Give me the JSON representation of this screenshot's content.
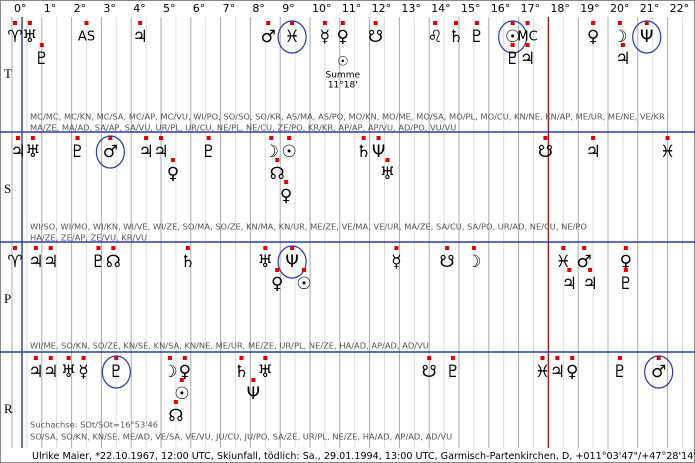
{
  "degree_labels": [
    "0°",
    "1°",
    "2°",
    "3°",
    "4°",
    "5°",
    "6°",
    "7°",
    "8°",
    "9°",
    "10°",
    "11°",
    "12°",
    "13°",
    "14°",
    "15°",
    "16°",
    "17°",
    "18°",
    "19°",
    "20°",
    "21°",
    "22°"
  ],
  "rows": [
    {
      "label": "T",
      "planets": [
        {
          "glyph": "♈",
          "deg": 0.1
        },
        {
          "glyph": "♅",
          "deg": 0.6
        },
        {
          "glyph": "♇",
          "deg": 1.0
        },
        {
          "glyph": "AS",
          "deg": 2.5
        },
        {
          "glyph": "♃",
          "deg": 4.3
        },
        {
          "glyph": "♂",
          "deg": 8.6
        },
        {
          "glyph": "♓",
          "deg": 9.4,
          "circled": true
        },
        {
          "glyph": "☿",
          "deg": 10.5
        },
        {
          "glyph": "♀",
          "deg": 11.1
        },
        {
          "glyph": "☋",
          "deg": 12.2
        },
        {
          "glyph": "♌",
          "deg": 14.2
        },
        {
          "glyph": "♄",
          "deg": 14.9
        },
        {
          "glyph": "♇",
          "deg": 15.6
        },
        {
          "glyph": "☉",
          "deg": 16.8,
          "circled": true
        },
        {
          "glyph": "♇",
          "deg": 16.8
        },
        {
          "glyph": "MC",
          "deg": 17.3
        },
        {
          "glyph": "♃",
          "deg": 17.3
        },
        {
          "glyph": "♀",
          "deg": 19.5
        },
        {
          "glyph": "☽",
          "deg": 20.4
        },
        {
          "glyph": "♃",
          "deg": 20.5
        },
        {
          "glyph": "Ψ",
          "deg": 21.3,
          "circled": true
        }
      ],
      "annotation": {
        "glyph": "☉",
        "label": "Summe",
        "value": "11°18'",
        "deg": 11.1
      },
      "midpoints": [
        "MC/MC, MC/KN, MC/SA, MC/AP, MC/VU, WI/PO, SO/SO, SO/KR, AS/MA, AS/PO, MO/KN, MO/ME, MO/SA, MO/PL, MO/CU, KN/NE, KN/AP, ME/UR, ME/NE, VE/KR",
        "MA/ZE, MA/AD, SA/AP, SA/VU, UR/PL, UR/CU, NE/PL, NE/CU, ZE/PO, KR/KR, AP/AP, AP/VU, AD/PO, VU/VU"
      ]
    },
    {
      "label": "S",
      "planets": [
        {
          "glyph": "♃",
          "deg": 0.2
        },
        {
          "glyph": "♅",
          "deg": 0.7
        },
        {
          "glyph": "♇",
          "deg": 2.2
        },
        {
          "glyph": "♂",
          "deg": 3.3,
          "circled": true
        },
        {
          "glyph": "♃",
          "deg": 4.5
        },
        {
          "glyph": "♃",
          "deg": 5.0
        },
        {
          "glyph": "♀",
          "deg": 5.4
        },
        {
          "glyph": "♇",
          "deg": 6.6
        },
        {
          "glyph": "☽",
          "deg": 8.7
        },
        {
          "glyph": "☉",
          "deg": 9.3
        },
        {
          "glyph": "☊",
          "deg": 8.9
        },
        {
          "glyph": "♀",
          "deg": 9.2
        },
        {
          "glyph": "♄",
          "deg": 11.8
        },
        {
          "glyph": "Ψ",
          "deg": 12.3
        },
        {
          "glyph": "♅",
          "deg": 12.6
        },
        {
          "glyph": "☋",
          "deg": 17.9
        },
        {
          "glyph": "♃",
          "deg": 19.5
        },
        {
          "glyph": "♓",
          "deg": 22.0
        }
      ],
      "midpoints": [
        "WI/SO, WI/MO, WI/KN, WI/VE, WI/ZE, SO/MA, SO/ZE, KN/MA, KN/UR, ME/ZE, VE/MA, VE/UR, MA/ZE, SA/CU, SA/PO, UR/AD, NE/CU, NE/PO",
        "HA/ZE, ZE/AP, ZE/VU, KR/VU"
      ]
    },
    {
      "label": "P",
      "planets": [
        {
          "glyph": "♈",
          "deg": 0.1
        },
        {
          "glyph": "♃",
          "deg": 0.8
        },
        {
          "glyph": "♃",
          "deg": 1.3
        },
        {
          "glyph": "♇",
          "deg": 2.9
        },
        {
          "glyph": "☊",
          "deg": 3.4
        },
        {
          "glyph": "♄",
          "deg": 5.9
        },
        {
          "glyph": "♅",
          "deg": 8.5
        },
        {
          "glyph": "♀",
          "deg": 8.9
        },
        {
          "glyph": "Ψ",
          "deg": 9.4,
          "circled": true
        },
        {
          "glyph": "☉",
          "deg": 9.8
        },
        {
          "glyph": "☿",
          "deg": 12.9
        },
        {
          "glyph": "☋",
          "deg": 14.6
        },
        {
          "glyph": "☽",
          "deg": 15.5
        },
        {
          "glyph": "♓",
          "deg": 18.5
        },
        {
          "glyph": "♃",
          "deg": 18.7
        },
        {
          "glyph": "♂",
          "deg": 19.2
        },
        {
          "glyph": "♃",
          "deg": 19.4
        },
        {
          "glyph": "♀",
          "deg": 20.6
        },
        {
          "glyph": "♇",
          "deg": 20.6
        }
      ],
      "midpoints": [
        "WI/ME, SO/KN, SO/ZE, KN/SE, KN/SA, KN/NE, ME/UR, ME/ZE, UR/PL, NE/ZE, HA/AD, AP/AD, AD/VU"
      ]
    },
    {
      "label": "R",
      "planets": [
        {
          "glyph": "♃",
          "deg": 0.8
        },
        {
          "glyph": "♃",
          "deg": 1.3
        },
        {
          "glyph": "♅",
          "deg": 1.9
        },
        {
          "glyph": "☿",
          "deg": 2.4
        },
        {
          "glyph": "♇",
          "deg": 3.5,
          "circled": true
        },
        {
          "glyph": "☽",
          "deg": 5.3
        },
        {
          "glyph": "☉",
          "deg": 5.7
        },
        {
          "glyph": "☊",
          "deg": 5.5
        },
        {
          "glyph": "♀",
          "deg": 5.8
        },
        {
          "glyph": "♄",
          "deg": 7.7
        },
        {
          "glyph": "Ψ",
          "deg": 8.1
        },
        {
          "glyph": "♅",
          "deg": 8.5
        },
        {
          "glyph": "☋",
          "deg": 14.0
        },
        {
          "glyph": "♇",
          "deg": 14.8
        },
        {
          "glyph": "♓",
          "deg": 17.8
        },
        {
          "glyph": "♃",
          "deg": 18.3
        },
        {
          "glyph": "♀",
          "deg": 18.8
        },
        {
          "glyph": "♇",
          "deg": 20.4
        },
        {
          "glyph": "♂",
          "deg": 21.7,
          "circled": true
        }
      ],
      "search_axis": "Suchachse: SOt/SOt=16°53'46",
      "midpoints": [
        "SO/SA, SO/KN, KN/SE, ME/AD, VE/SA, VE/VU, JU/CU, JU/PO, SA/ZE, UR/PL, NE/ZE, HA/AD, AP/AD, AD/VU"
      ]
    }
  ],
  "footer": "Ulrike Maier,  *22.10.1967, 12:00 UTC, Skiunfall, tödlich: Sa., 29.01.1994, 13:00 UTC, Garmisch-Partenkirchen, D, +011°03'47\"/+47°28'14\""
}
